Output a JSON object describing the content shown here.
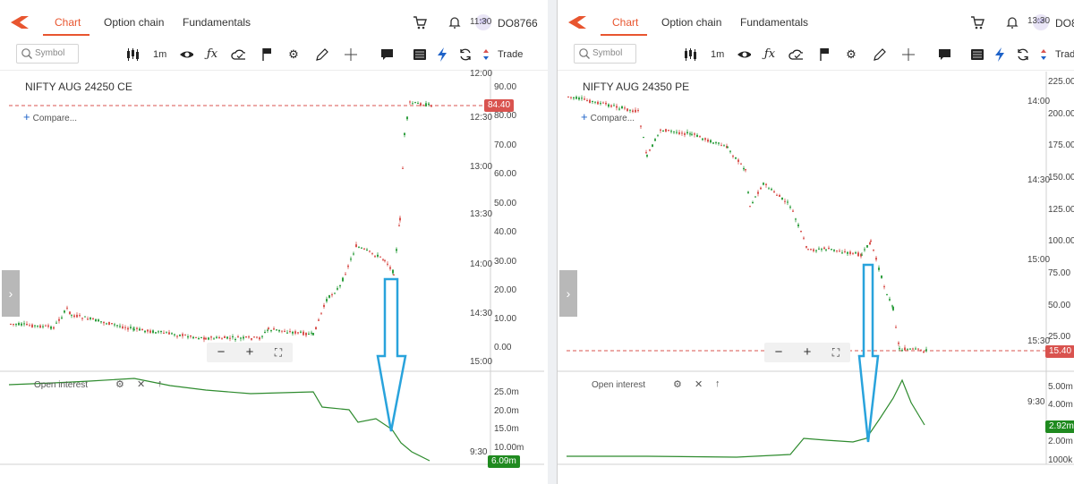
{
  "left": {
    "tabs": [
      "Chart",
      "Option chain",
      "Fundamentals"
    ],
    "user_id": "DO8766",
    "avatar_initials": "SP",
    "search_placeholder": "Symbol",
    "interval": "1m",
    "trade_label": "Trade",
    "symbol_title": "NIFTY AUG 24250 CE",
    "compare_label": "Compare...",
    "price_axis": [
      "90.00",
      "80.00",
      "70.00",
      "60.00",
      "50.00",
      "40.00",
      "30.00",
      "20.00",
      "10.00",
      "0.00"
    ],
    "last_price": "84.40",
    "oi_label": "Open interest",
    "oi_axis": [
      "25.0m",
      "20.0m",
      "15.0m",
      "10.00m"
    ],
    "oi_last": "6.09m",
    "time_axis": [
      "11:30",
      "12:00",
      "12:30",
      "13:00",
      "13:30",
      "14:00",
      "14:30",
      "15:00",
      "9:30"
    ]
  },
  "right": {
    "tabs": [
      "Chart",
      "Option chain",
      "Fundamentals"
    ],
    "user_id": "DO8",
    "avatar_initials": "SP",
    "search_placeholder": "Symbol",
    "interval": "1m",
    "trade_label": "Trade",
    "symbol_title": "NIFTY AUG 24350 PE",
    "compare_label": "Compare...",
    "price_axis": [
      "225.00",
      "200.00",
      "175.00",
      "150.00",
      "125.00",
      "100.00",
      "75.00",
      "50.00",
      "25.00"
    ],
    "last_price": "15.40",
    "oi_label": "Open interest",
    "oi_axis": [
      "5.00m",
      "4.00m",
      "2.00m",
      "1000k"
    ],
    "oi_last": "2.92m",
    "time_axis": [
      "13:30",
      "14:00",
      "14:30",
      "15:00",
      "15:30",
      "9:30"
    ]
  },
  "colors": {
    "accent": "#e8552f",
    "up": "#2e9e3e",
    "down": "#d9534f",
    "oi_line": "#2e8b2e",
    "annotation": "#29a3dc",
    "last_price_tag": "#d9534f",
    "oi_tag": "#1f8a1f"
  },
  "icons": [
    "cart-icon",
    "bell-icon",
    "candles-icon",
    "eye-icon",
    "fx-icon",
    "cloud-icon",
    "flag-icon",
    "gear-icon",
    "pencil-icon",
    "crosshair-icon",
    "comment-icon",
    "book-icon",
    "lightning-icon",
    "refresh-icon",
    "trade-icon"
  ]
}
